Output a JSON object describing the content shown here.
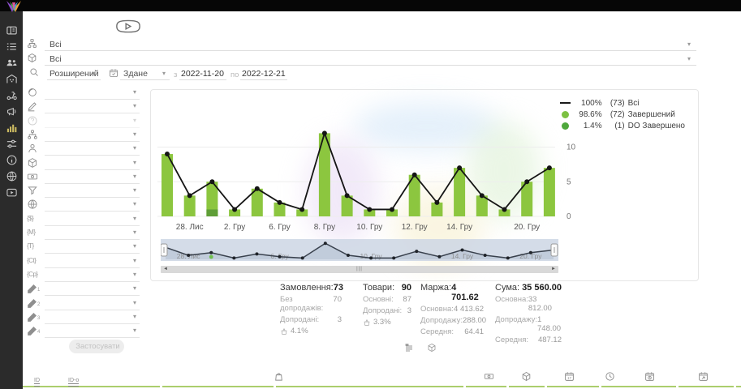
{
  "app_name": "orders-analytics",
  "sidebar": {
    "items": [
      {
        "icon": "dashboard-icon"
      },
      {
        "icon": "orders-list-icon"
      },
      {
        "icon": "users-icon"
      },
      {
        "icon": "warehouse-icon"
      },
      {
        "icon": "delivery-icon"
      },
      {
        "icon": "megaphone-icon"
      },
      {
        "icon": "analytics-icon",
        "active": true
      },
      {
        "icon": "sliders-icon"
      },
      {
        "icon": "info-icon"
      },
      {
        "icon": "globe-icon"
      },
      {
        "icon": "video-icon"
      }
    ]
  },
  "filters_top": {
    "row1_value": "Всі",
    "row2_value": "Всі",
    "search_mode": "Розширений",
    "date_type": "Здане",
    "from_label": "з",
    "date_from": "2022-11-20",
    "to_label": "по",
    "date_to": "2022-12-21"
  },
  "filter_panel": {
    "rows": [
      {
        "icon": "globe-spin-icon"
      },
      {
        "icon": "pen-icon"
      },
      {
        "icon": "question-icon",
        "disabled": true
      },
      {
        "icon": "org-chart-icon"
      },
      {
        "icon": "person-icon"
      },
      {
        "icon": "cube-icon"
      },
      {
        "icon": "banknote-icon"
      },
      {
        "icon": "funnel-icon"
      },
      {
        "icon": "globe-icon"
      },
      {
        "icon": "brace-icon",
        "text": "{$}"
      },
      {
        "icon": "brace-icon",
        "text": "{M}"
      },
      {
        "icon": "brace-icon",
        "text": "{T}"
      },
      {
        "icon": "brace-icon",
        "text": "{Ct}"
      },
      {
        "icon": "brace-icon",
        "text": "{Cp}"
      },
      {
        "icon": "pencil-icon",
        "text": "1"
      },
      {
        "icon": "pencil-icon",
        "text": "2"
      },
      {
        "icon": "pencil-icon",
        "text": "3"
      },
      {
        "icon": "pencil-icon",
        "text": "4"
      }
    ],
    "apply_label": "Застосувати"
  },
  "legend": [
    {
      "swatch": "line",
      "color": "#1a1a1a",
      "pct": "100%",
      "count": "(73)",
      "label": "Всі"
    },
    {
      "swatch": "dot",
      "color": "#7dc142",
      "pct": "98.6%",
      "count": "(72)",
      "label": "Завершений"
    },
    {
      "swatch": "dot",
      "color": "#4fa83c",
      "pct": "1.4%",
      "count": "(1)",
      "label": "DO Завершено"
    }
  ],
  "chart_data": {
    "type": "bar",
    "title": "",
    "xlabel": "",
    "ylabel": "",
    "ylim": [
      0,
      12
    ],
    "yticks": [
      0,
      5,
      10
    ],
    "grid": true,
    "legend_position": "top-right",
    "x_tick_labels": {
      "1": "28. Лис",
      "3": "2. Гру",
      "5": "6. Гру",
      "7": "8. Гру",
      "9": "10. Гру",
      "11": "12. Гру",
      "13": "14. Гру",
      "16": "20. Гру"
    },
    "series": [
      {
        "name": "Всі",
        "type": "line",
        "color": "#151515",
        "values": [
          9,
          3,
          5,
          1,
          4,
          2,
          1,
          12,
          3,
          1,
          1,
          6,
          2,
          7,
          3,
          1,
          5,
          7
        ]
      },
      {
        "name": "Завершений",
        "type": "bar",
        "color": "#8cc63f",
        "values": [
          9,
          3,
          4,
          1,
          4,
          2,
          1,
          12,
          3,
          1,
          1,
          6,
          2,
          7,
          3,
          1,
          5,
          7
        ]
      },
      {
        "name": "DO Завершено",
        "type": "bar-stack-bottom",
        "color": "#5f9e37",
        "values": [
          0,
          0,
          1,
          0,
          0,
          0,
          0,
          0,
          0,
          0,
          0,
          0,
          0,
          0,
          0,
          0,
          0,
          0
        ]
      }
    ],
    "totals": {
      "all": 73,
      "completed": 72,
      "do_completed": 1
    },
    "brush": {
      "selection": "full",
      "labels": {
        "1": "28. Лис",
        "5": "6. Гру",
        "9": "10. Гру",
        "13": "14. Гру",
        "16": "20. Гру"
      },
      "marker_color": "#6fbf4e"
    }
  },
  "stats": {
    "columns": [
      {
        "title": "Замовлення:",
        "value": "73",
        "rows": [
          {
            "label": "Без допродажів:",
            "value": "70"
          },
          {
            "label": "Допродані:",
            "value": "3"
          }
        ],
        "upsell_pct": "4.1%"
      },
      {
        "title": "Товари:",
        "value": "90",
        "rows": [
          {
            "label": "Основні:",
            "value": "87"
          },
          {
            "label": "Допродані:",
            "value": "3"
          }
        ],
        "upsell_pct": "3.3%"
      },
      {
        "title": "Маржа:",
        "value": "4 701.62",
        "rows": [
          {
            "label": "Основна:",
            "value": "4 413.62"
          },
          {
            "label": "Допродажу:",
            "value": "288.00"
          },
          {
            "label": "Середня:",
            "value": "64.41"
          }
        ]
      },
      {
        "title": "Сума:",
        "value": "35 560.00",
        "rows": [
          {
            "label": "Основна:",
            "value": "33 812.00"
          },
          {
            "label": "Допродажу:",
            "value": "1 748.00"
          },
          {
            "label": "Середня:",
            "value": "487.12"
          }
        ]
      }
    ]
  },
  "under_stats_icons": [
    "list-flag-icon",
    "cube-icon"
  ],
  "bottom_bar": {
    "icons": [
      "id-eq-icon",
      "id-o-icon",
      "bag-icon",
      "banknote-icon",
      "cube-icon",
      "calendar-17-icon",
      "clock-icon",
      "calendar-clock-icon",
      "calendar-arrow-icon"
    ],
    "accent_color": "#abce6d"
  },
  "colors": {
    "bar_green": "#8cc63f",
    "bar_green_dark": "#5f9e37",
    "line_black": "#151515",
    "brush_fill": "#cdd6e4",
    "sidebar_active": "#c9b860"
  }
}
